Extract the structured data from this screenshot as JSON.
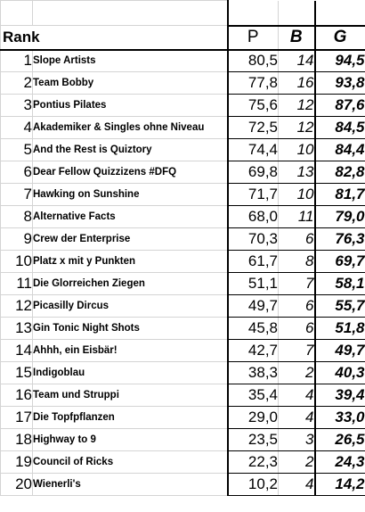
{
  "header": {
    "rank": "Rank",
    "points": "P",
    "bonus": "B",
    "total": "G"
  },
  "rows": [
    {
      "rank": "1",
      "team": "Slope Artists",
      "p": "80,5",
      "b": "14",
      "g": "94,5"
    },
    {
      "rank": "2",
      "team": "Team Bobby",
      "p": "77,8",
      "b": "16",
      "g": "93,8"
    },
    {
      "rank": "3",
      "team": "Pontius Pilates",
      "p": "75,6",
      "b": "12",
      "g": "87,6"
    },
    {
      "rank": "4",
      "team": "Akademiker & Singles ohne Niveau",
      "p": "72,5",
      "b": "12",
      "g": "84,5"
    },
    {
      "rank": "5",
      "team": "And the Rest is Quiztory",
      "p": "74,4",
      "b": "10",
      "g": "84,4"
    },
    {
      "rank": "6",
      "team": "Dear Fellow Quizzizens #DFQ",
      "p": "69,8",
      "b": "13",
      "g": "82,8"
    },
    {
      "rank": "7",
      "team": "Hawking on Sunshine",
      "p": "71,7",
      "b": "10",
      "g": "81,7"
    },
    {
      "rank": "8",
      "team": "Alternative Facts",
      "p": "68,0",
      "b": "11",
      "g": "79,0"
    },
    {
      "rank": "9",
      "team": "Crew der Enterprise",
      "p": "70,3",
      "b": "6",
      "g": "76,3"
    },
    {
      "rank": "10",
      "team": "Platz x mit y Punkten",
      "p": "61,7",
      "b": "8",
      "g": "69,7"
    },
    {
      "rank": "11",
      "team": "Die Glorreichen Ziegen",
      "p": "51,1",
      "b": "7",
      "g": "58,1"
    },
    {
      "rank": "12",
      "team": "Picasilly Dircus",
      "p": "49,7",
      "b": "6",
      "g": "55,7"
    },
    {
      "rank": "13",
      "team": "Gin Tonic Night Shots",
      "p": "45,8",
      "b": "6",
      "g": "51,8"
    },
    {
      "rank": "14",
      "team": "Ahhh, ein Eisbär!",
      "p": "42,7",
      "b": "7",
      "g": "49,7"
    },
    {
      "rank": "15",
      "team": "Indigoblau",
      "p": "38,3",
      "b": "2",
      "g": "40,3"
    },
    {
      "rank": "16",
      "team": "Team und Struppi",
      "p": "35,4",
      "b": "4",
      "g": "39,4"
    },
    {
      "rank": "17",
      "team": "Die Topfpflanzen",
      "p": "29,0",
      "b": "4",
      "g": "33,0"
    },
    {
      "rank": "18",
      "team": "Highway to 9",
      "p": "23,5",
      "b": "3",
      "g": "26,5"
    },
    {
      "rank": "19",
      "team": "Council of Ricks",
      "p": "22,3",
      "b": "2",
      "g": "24,3"
    },
    {
      "rank": "20",
      "team": "Wienerli's",
      "p": "10,2",
      "b": "4",
      "g": "14,2"
    }
  ]
}
